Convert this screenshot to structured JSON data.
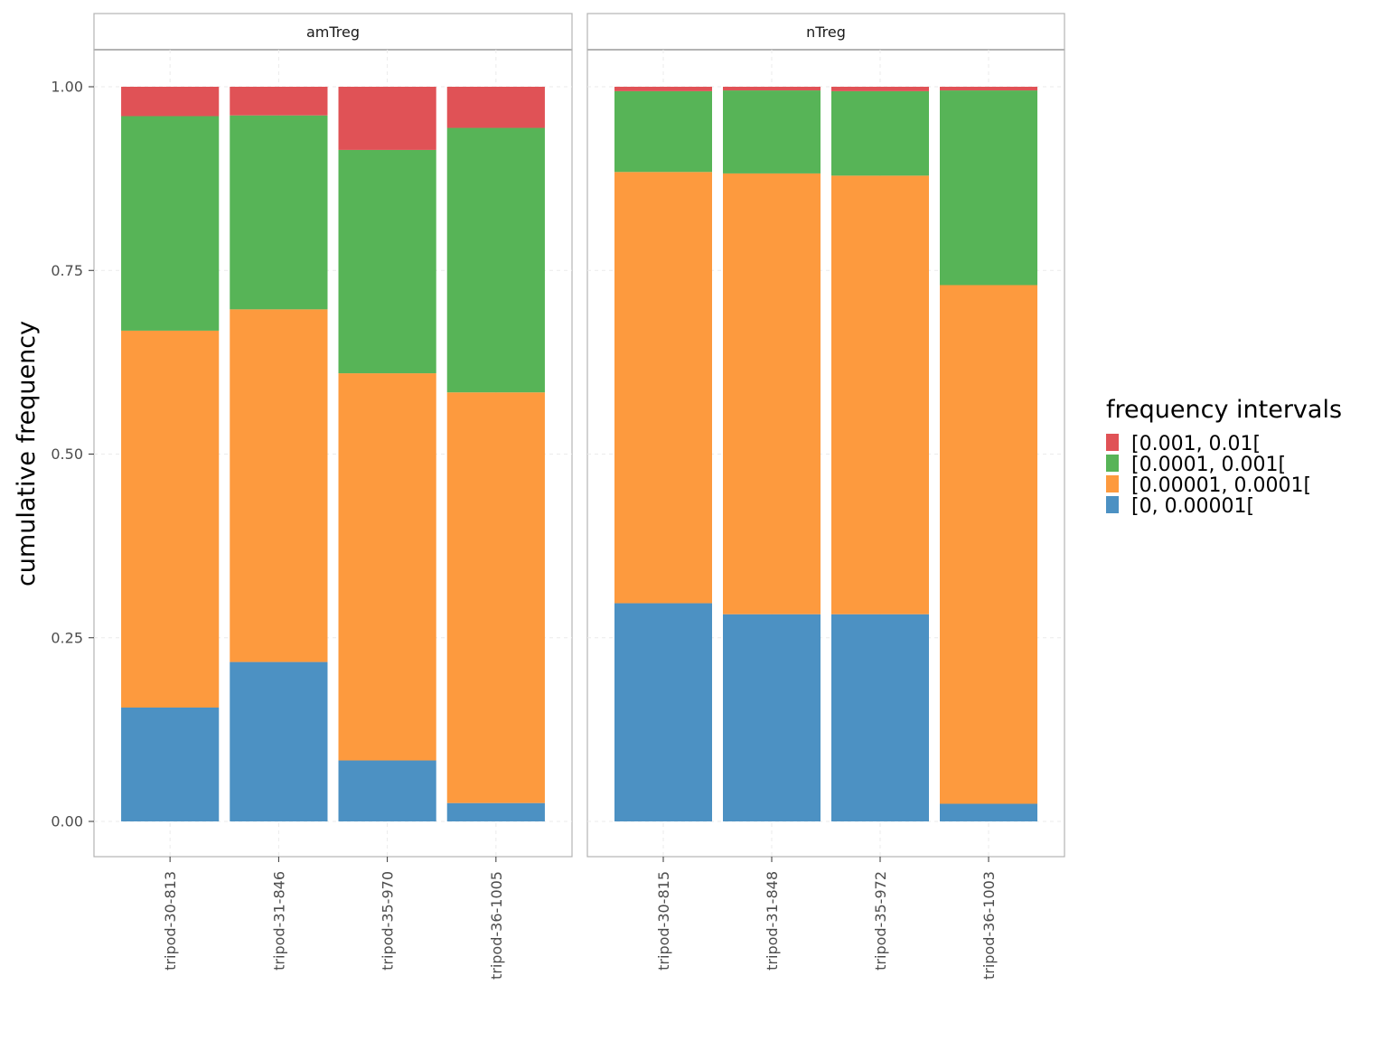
{
  "chart_data": {
    "type": "bar",
    "stacked": true,
    "ylabel": "cumulative frequency",
    "xlabel": "",
    "ylim": [
      0,
      1
    ],
    "yticks": [
      "0.00",
      "0.25",
      "0.50",
      "0.75",
      "1.00"
    ],
    "grid": true,
    "legend": {
      "title": "frequency intervals",
      "placement": "right",
      "items": [
        {
          "label": "[0.001, 0.01[",
          "color": "#e05256"
        },
        {
          "label": "[0.0001, 0.001[",
          "color": "#57b457"
        },
        {
          "label": "[0.00001, 0.0001[",
          "color": "#fd9a3e"
        },
        {
          "label": "[0, 0.00001[",
          "color": "#4c91c3"
        }
      ]
    },
    "stack_order": [
      "[0, 0.00001[",
      "[0.00001, 0.0001[",
      "[0.0001, 0.001[",
      "[0.001, 0.01["
    ],
    "panels": [
      {
        "name": "amTreg",
        "categories": [
          "tripod-30-813",
          "tripod-31-846",
          "tripod-35-970",
          "tripod-36-1005"
        ],
        "series": [
          {
            "name": "[0, 0.00001[",
            "values": [
              0.155,
              0.217,
              0.083,
              0.025
            ]
          },
          {
            "name": "[0.00001, 0.0001[",
            "values": [
              0.513,
              0.48,
              0.527,
              0.559
            ]
          },
          {
            "name": "[0.0001, 0.001[",
            "values": [
              0.292,
              0.264,
              0.304,
              0.36
            ]
          },
          {
            "name": "[0.001, 0.01[",
            "values": [
              0.04,
              0.039,
              0.086,
              0.056
            ]
          }
        ]
      },
      {
        "name": "nTreg",
        "categories": [
          "tripod-30-815",
          "tripod-31-848",
          "tripod-35-972",
          "tripod-36-1003"
        ],
        "series": [
          {
            "name": "[0, 0.00001[",
            "values": [
              0.297,
              0.282,
              0.282,
              0.024
            ]
          },
          {
            "name": "[0.00001, 0.0001[",
            "values": [
              0.587,
              0.6,
              0.597,
              0.706
            ]
          },
          {
            "name": "[0.0001, 0.001[",
            "values": [
              0.11,
              0.113,
              0.115,
              0.265
            ]
          },
          {
            "name": "[0.001, 0.01[",
            "values": [
              0.006,
              0.005,
              0.006,
              0.005
            ]
          }
        ]
      }
    ]
  }
}
